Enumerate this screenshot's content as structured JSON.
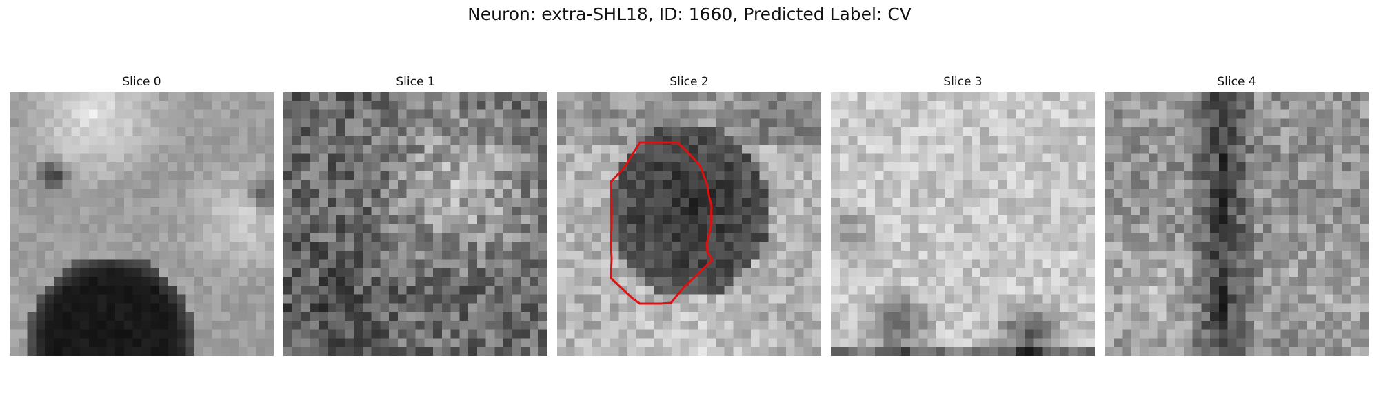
{
  "title": "Neuron: extra-SHL18, ID: 1660, Predicted Label: CV",
  "panels": [
    {
      "label": "Slice 0",
      "pattern": "slice0"
    },
    {
      "label": "Slice 1",
      "pattern": "slice1"
    },
    {
      "label": "Slice 2",
      "pattern": "slice2",
      "outlined": true
    },
    {
      "label": "Slice 3",
      "pattern": "slice3"
    },
    {
      "label": "Slice 4",
      "pattern": "slice4"
    }
  ],
  "colors": {
    "contour": "#e01010",
    "colormap": "gray"
  }
}
